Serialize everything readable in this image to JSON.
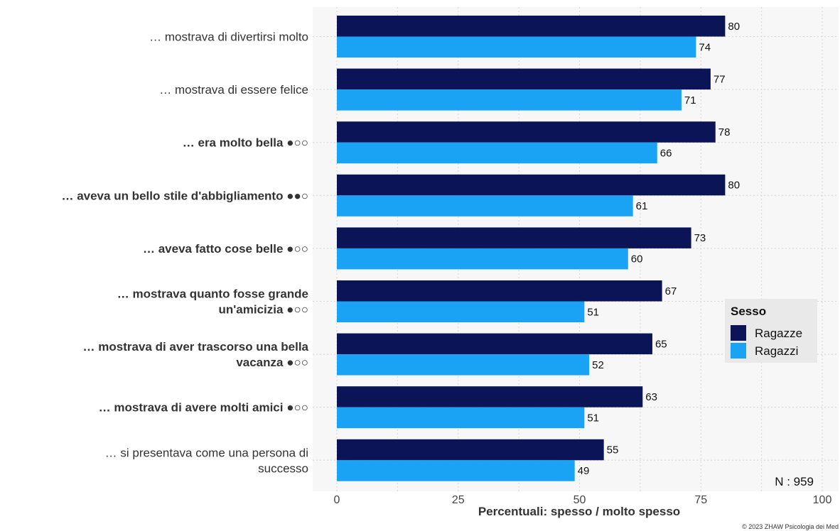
{
  "chart_data": {
    "type": "bar",
    "orientation": "horizontal",
    "categories": [
      {
        "lines": [
          "… mostrava di divertirsi molto"
        ],
        "bold": false
      },
      {
        "lines": [
          "… mostrava di essere felice"
        ],
        "bold": false
      },
      {
        "lines": [
          "… era molto bella ●○○"
        ],
        "bold": true
      },
      {
        "lines": [
          "… aveva un bello stile d'abbigliamento ●●○"
        ],
        "bold": true
      },
      {
        "lines": [
          "… aveva fatto cose belle ●○○"
        ],
        "bold": true
      },
      {
        "lines": [
          "… mostrava quanto fosse grande",
          "un'amicizia ●○○"
        ],
        "bold": true
      },
      {
        "lines": [
          "… mostrava di aver trascorso una bella",
          "vacanza ●○○"
        ],
        "bold": true
      },
      {
        "lines": [
          "… mostrava di avere molti amici ●○○"
        ],
        "bold": true
      },
      {
        "lines": [
          "… si presentava come una persona di",
          "successo"
        ],
        "bold": false
      }
    ],
    "series": [
      {
        "name": "Ragazze",
        "color": "#0b1457",
        "values": [
          80,
          77,
          78,
          80,
          73,
          67,
          65,
          63,
          55
        ]
      },
      {
        "name": "Ragazzi",
        "color": "#1aa3f5",
        "values": [
          74,
          71,
          66,
          61,
          60,
          51,
          52,
          51,
          49
        ]
      }
    ],
    "xlabel": "Percentuali:  spesso / molto spesso",
    "xlim": [
      0,
      100
    ],
    "xticks": [
      0,
      25,
      50,
      75,
      100
    ],
    "grid": true,
    "legend": {
      "title": "Sesso",
      "placement": "right"
    },
    "n_label": "N : 959",
    "credit": "© 2023 ZHAW Psicologia dei Med"
  }
}
